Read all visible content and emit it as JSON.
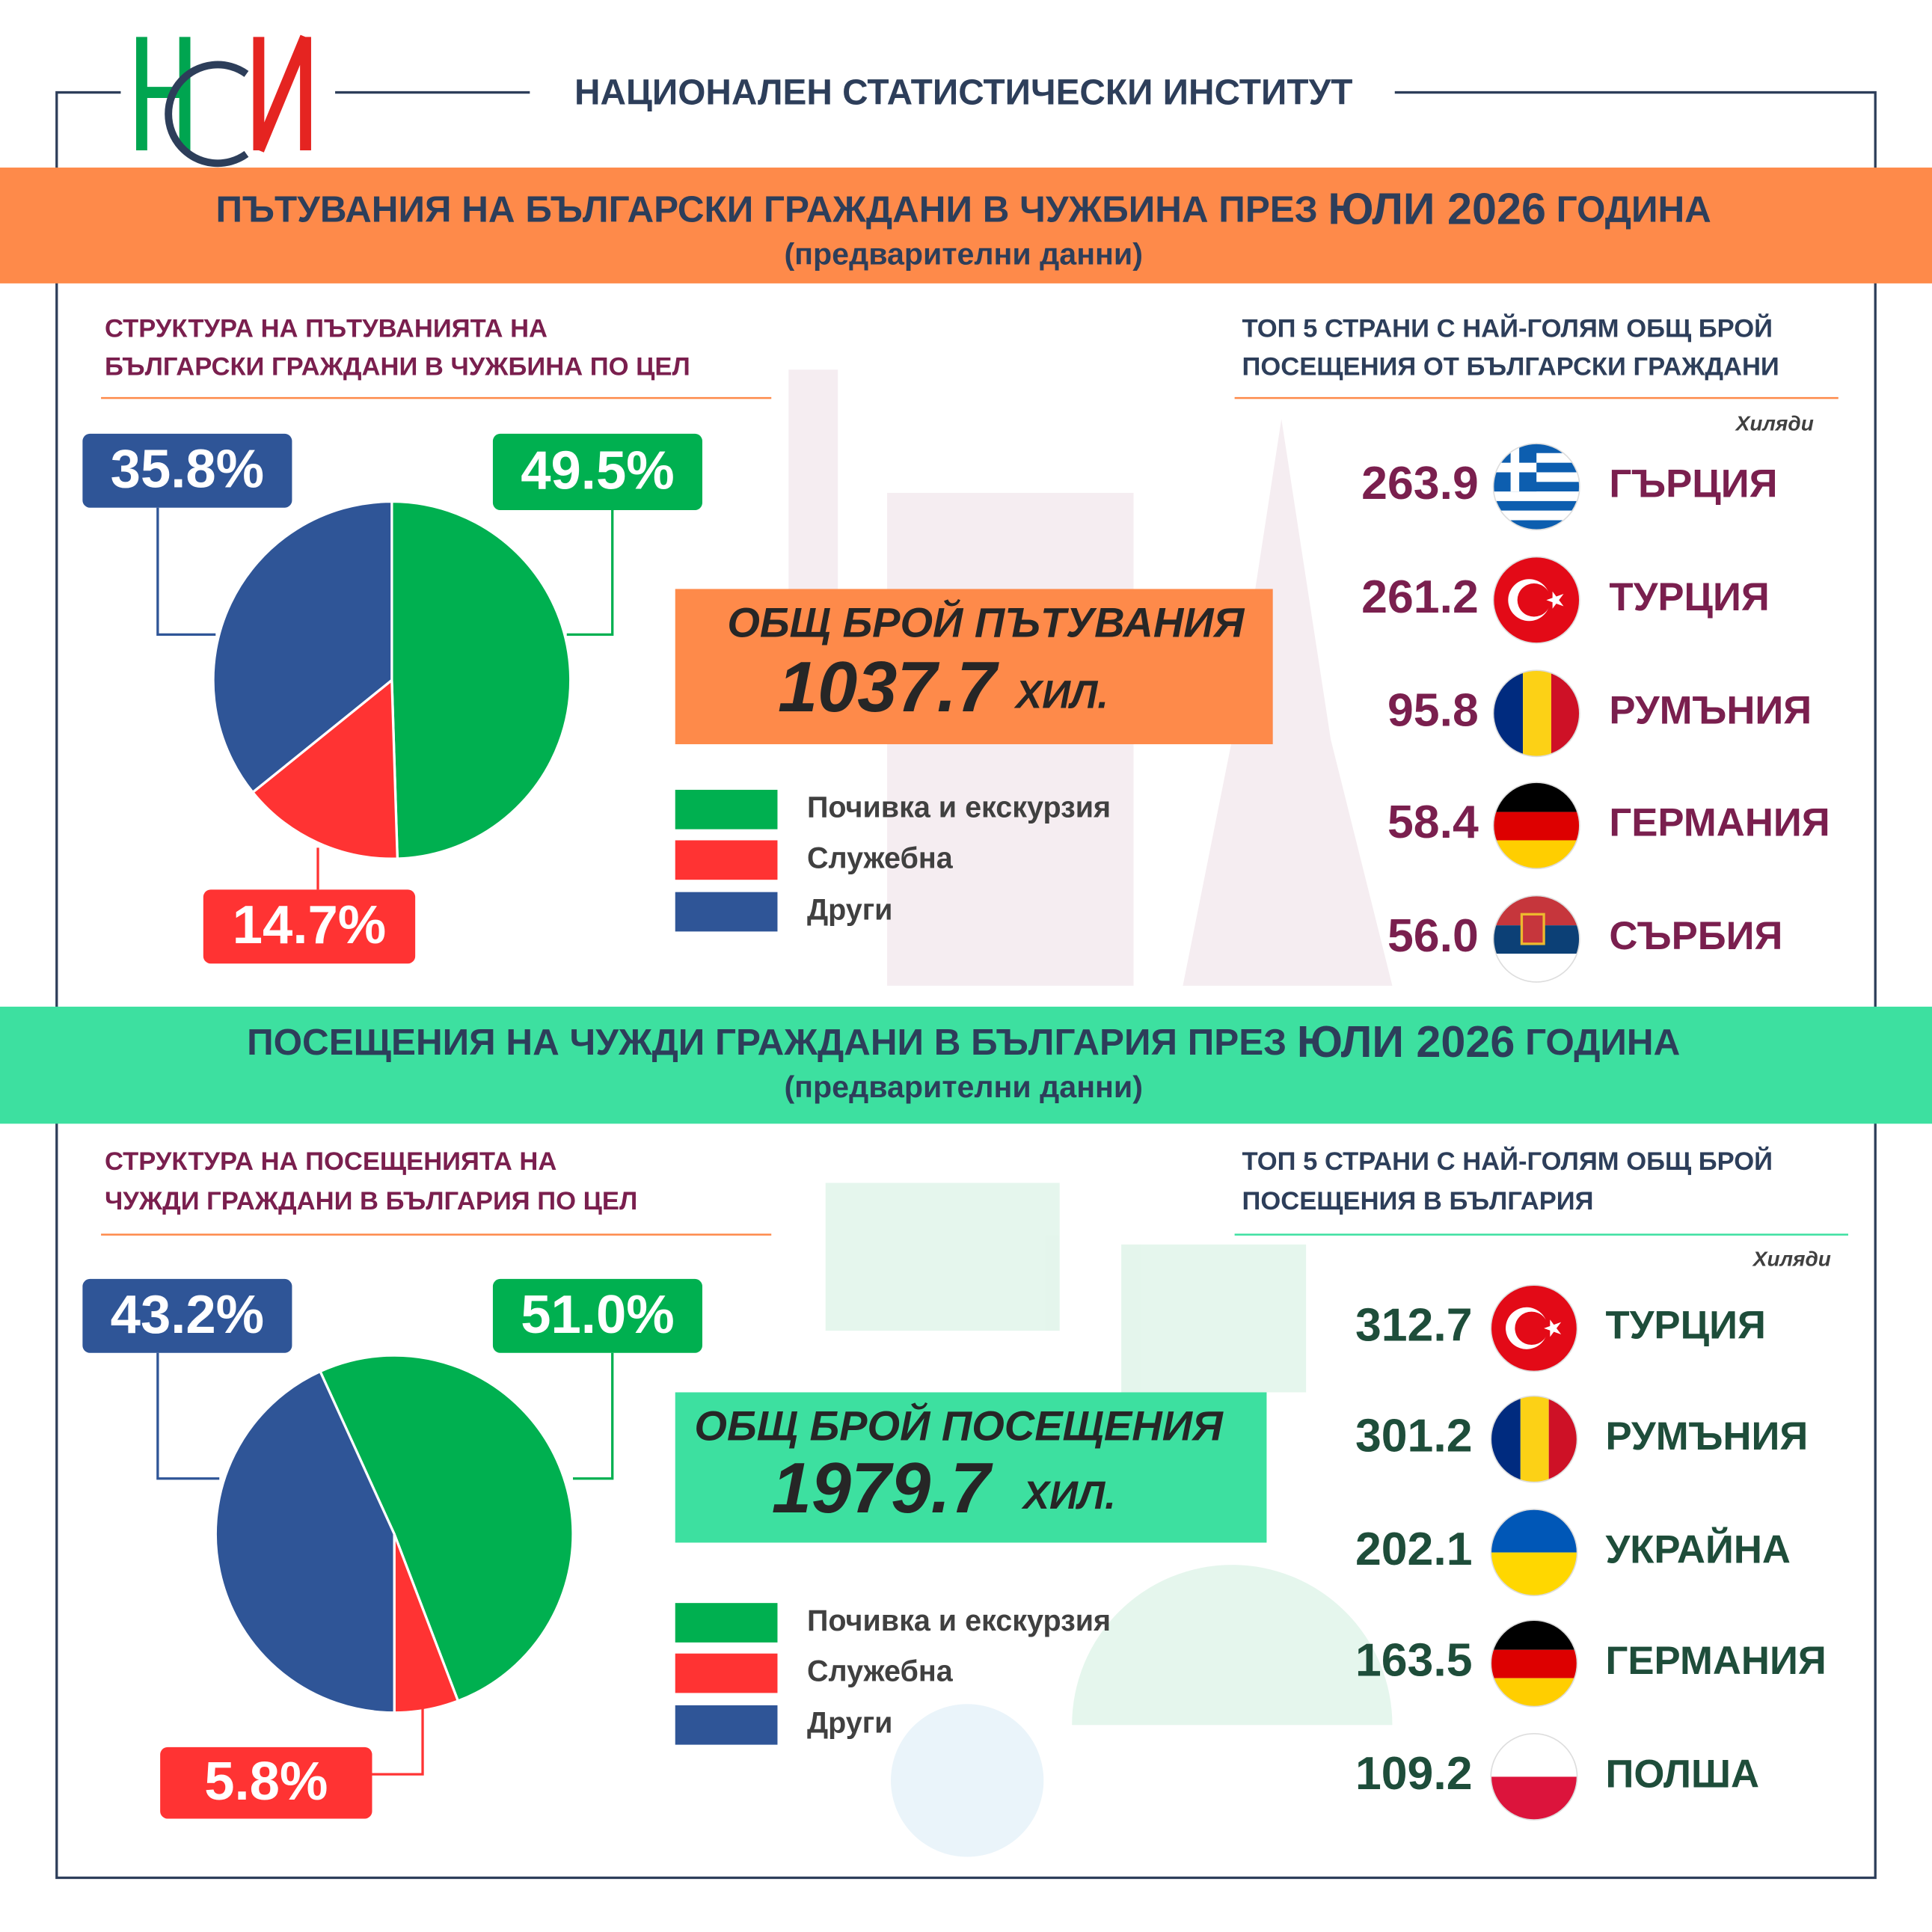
{
  "header": {
    "title": "НАЦИОНАЛЕН СТАТИСТИЧЕСКИ ИНСТИТУТ"
  },
  "sections": [
    {
      "banner": [
        "ПЪТУВАНИЯ НА БЪЛГАРСКИ ГРАЖДАНИ В ЧУЖБИНА ПРЕЗ ",
        "ЮЛИ 2026",
        " ГОДИНА"
      ],
      "subtitle": "(предварителни данни)",
      "total_label": "ОБЩ БРОЙ ПЪТУВАНИЯ",
      "total": "1037.7",
      "total_unit": "ХИЛ.",
      "top_title": [
        "ТОП 5 СТРАНИ С НАЙ-ГОЛЯМ ОБЩ БРОЙ",
        "ПОСЕЩЕНИЯ ОТ БЪЛГАРСКИ ГРАЖДАНИ"
      ],
      "unit": "Хиляди",
      "top": [
        {
          "value": "263.9",
          "country": "ГЪРЦИЯ"
        },
        {
          "value": "261.2",
          "country": "ТУРЦИЯ"
        },
        {
          "value": "95.8",
          "country": "РУМЪНИЯ"
        },
        {
          "value": "58.4",
          "country": "ГЕРМАНИЯ"
        },
        {
          "value": "56.0",
          "country": "СЪРБИЯ"
        }
      ]
    },
    {
      "banner": [
        "ПОСЕЩЕНИЯ НА ЧУЖДИ ГРАЖДАНИ В БЪЛГАРИЯ ПРЕЗ ",
        "ЮЛИ 2026",
        " ГОДИНА"
      ],
      "subtitle": "(предварителни данни)",
      "total_label": "ОБЩ БРОЙ ПОСЕЩЕНИЯ",
      "total": "1979.7",
      "total_unit": "ХИЛ.",
      "top_title": [
        "ТОП 5 СТРАНИ С НАЙ-ГОЛЯМ ОБЩ БРОЙ",
        "ПОСЕЩЕНИЯ В БЪЛГАРИЯ"
      ],
      "unit": "Хиляди",
      "top": [
        {
          "value": "312.7",
          "country": "ТУРЦИЯ"
        },
        {
          "value": "301.2",
          "country": "РУМЪНИЯ"
        },
        {
          "value": "202.1",
          "country": "УКРАЙНА"
        },
        {
          "value": "163.5",
          "country": "ГЕРМАНИЯ"
        },
        {
          "value": "109.2",
          "country": "ПОЛША"
        }
      ]
    }
  ],
  "chart_data": [
    {
      "type": "pie",
      "title": [
        "СТРУКТУРА НА ПЪТУВАНИЯТА НА",
        "БЪЛГАРСКИ ГРАЖДАНИ В ЧУЖБИНА ПО ЦЕЛ"
      ],
      "categories": [
        "Почивка и екскурзия",
        "Служебна",
        "Други"
      ],
      "values": [
        49.5,
        14.7,
        35.8
      ],
      "value_labels": [
        "49.5%",
        "14.7%",
        "35.8%"
      ],
      "colors": [
        "#00b050",
        "#ff3333",
        "#2f5597"
      ]
    },
    {
      "type": "pie",
      "title": [
        "СТРУКТУРА НА ПОСЕЩЕНИЯТА НА",
        "ЧУЖДИ ГРАЖДАНИ В БЪЛГАРИЯ ПО ЦЕЛ"
      ],
      "categories": [
        "Почивка и екскурзия",
        "Служебна",
        "Други"
      ],
      "values": [
        51.0,
        5.8,
        43.2
      ],
      "value_labels": [
        "51.0%",
        "5.8%",
        "43.2%"
      ],
      "colors": [
        "#00b050",
        "#ff3333",
        "#2f5597"
      ]
    }
  ]
}
